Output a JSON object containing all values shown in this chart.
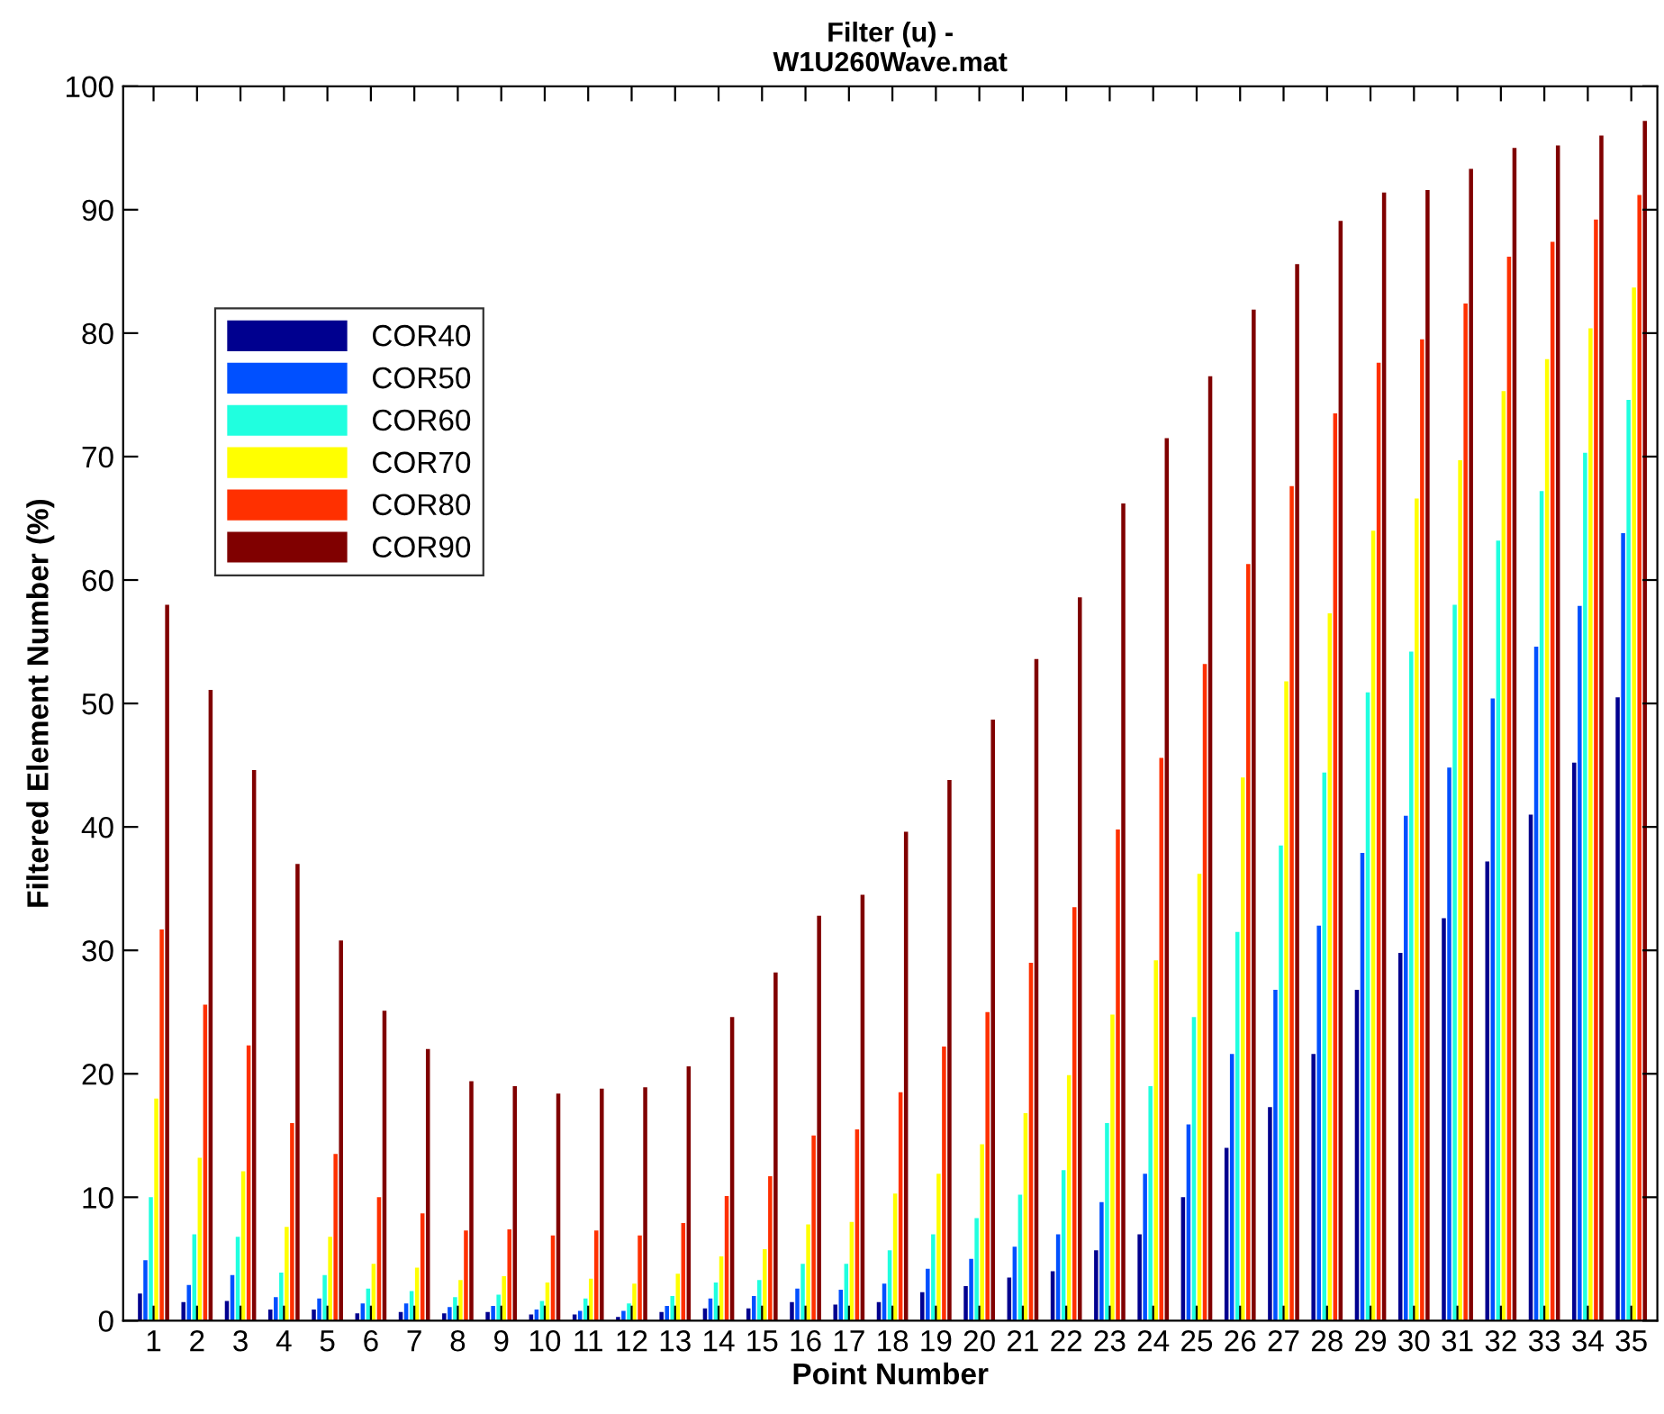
{
  "chart_data": {
    "type": "bar",
    "title": "Filter (u) -\nW1U260Wave.mat",
    "xlabel": "Point Number",
    "ylabel": "Filtered Element Number (%)",
    "categories": [
      "1",
      "2",
      "3",
      "4",
      "5",
      "6",
      "7",
      "8",
      "9",
      "10",
      "11",
      "12",
      "13",
      "14",
      "15",
      "16",
      "17",
      "18",
      "19",
      "20",
      "21",
      "22",
      "23",
      "24",
      "25",
      "26",
      "27",
      "28",
      "29",
      "30",
      "31",
      "32",
      "33",
      "34",
      "35"
    ],
    "series": [
      {
        "name": "COR40",
        "color": "#00008f",
        "values": [
          2.2,
          1.5,
          1.6,
          0.9,
          0.9,
          0.6,
          0.7,
          0.6,
          0.7,
          0.5,
          0.5,
          0.3,
          0.7,
          1.0,
          1.0,
          1.5,
          1.3,
          1.5,
          2.3,
          2.8,
          3.5,
          4.0,
          5.7,
          7.0,
          10.0,
          14.0,
          17.3,
          21.6,
          26.8,
          29.8,
          32.6,
          37.2,
          41.0,
          45.2,
          50.5
        ]
      },
      {
        "name": "COR50",
        "color": "#0050ff",
        "values": [
          4.9,
          2.9,
          3.7,
          1.9,
          1.8,
          1.4,
          1.4,
          1.1,
          1.2,
          0.9,
          0.8,
          0.8,
          1.2,
          1.8,
          2.0,
          2.6,
          2.5,
          3.0,
          4.2,
          5.0,
          6.0,
          7.0,
          9.6,
          11.9,
          15.9,
          21.6,
          26.8,
          32.0,
          37.9,
          40.9,
          44.8,
          50.4,
          54.6,
          57.9,
          63.8
        ]
      },
      {
        "name": "COR60",
        "color": "#20ffdf",
        "values": [
          10,
          7,
          6.8,
          3.9,
          3.7,
          2.6,
          2.4,
          1.9,
          2.1,
          1.6,
          1.8,
          1.4,
          2.0,
          3.1,
          3.3,
          4.6,
          4.6,
          5.7,
          7.0,
          8.3,
          10.2,
          12.2,
          16,
          19.0,
          24.6,
          31.5,
          38.5,
          44.4,
          50.9,
          54.2,
          58.0,
          63.2,
          67.2,
          70.3,
          74.6
        ]
      },
      {
        "name": "COR70",
        "color": "#ffff00",
        "values": [
          18,
          13.2,
          12.1,
          7.6,
          6.8,
          4.6,
          4.3,
          3.3,
          3.6,
          3.1,
          3.4,
          3.0,
          3.8,
          5.2,
          5.8,
          7.8,
          8.0,
          10.3,
          11.9,
          14.3,
          16.8,
          19.9,
          24.8,
          29.2,
          36.2,
          44.0,
          51.8,
          57.3,
          64.0,
          66.6,
          69.7,
          75.3,
          77.9,
          80.4,
          83.7
        ]
      },
      {
        "name": "COR80",
        "color": "#ff3000",
        "values": [
          31.7,
          25.6,
          22.3,
          16,
          13.5,
          10,
          8.7,
          7.3,
          7.4,
          6.9,
          7.3,
          6.9,
          7.9,
          10.1,
          11.7,
          15.0,
          15.5,
          18.5,
          22.2,
          25.0,
          29.0,
          33.5,
          39.8,
          45.6,
          53.2,
          61.3,
          67.6,
          73.5,
          77.6,
          79.5,
          82.4,
          86.2,
          87.4,
          89.2,
          91.2
        ]
      },
      {
        "name": "COR90",
        "color": "#800000",
        "values": [
          58,
          51.1,
          44.6,
          37,
          30.8,
          25.1,
          22,
          19.4,
          19,
          18.4,
          18.8,
          18.9,
          20.6,
          24.6,
          28.2,
          32.8,
          34.5,
          39.6,
          43.8,
          48.7,
          53.6,
          58.6,
          66.2,
          71.5,
          76.5,
          81.9,
          85.6,
          89.1,
          91.4,
          91.6,
          93.3,
          95.0,
          95.2,
          96.0,
          97.2
        ]
      }
    ],
    "ylim": [
      0,
      100
    ],
    "yticks": [
      0,
      10,
      20,
      30,
      40,
      50,
      60,
      70,
      80,
      90,
      100
    ],
    "grid": false,
    "legend": "top left"
  }
}
